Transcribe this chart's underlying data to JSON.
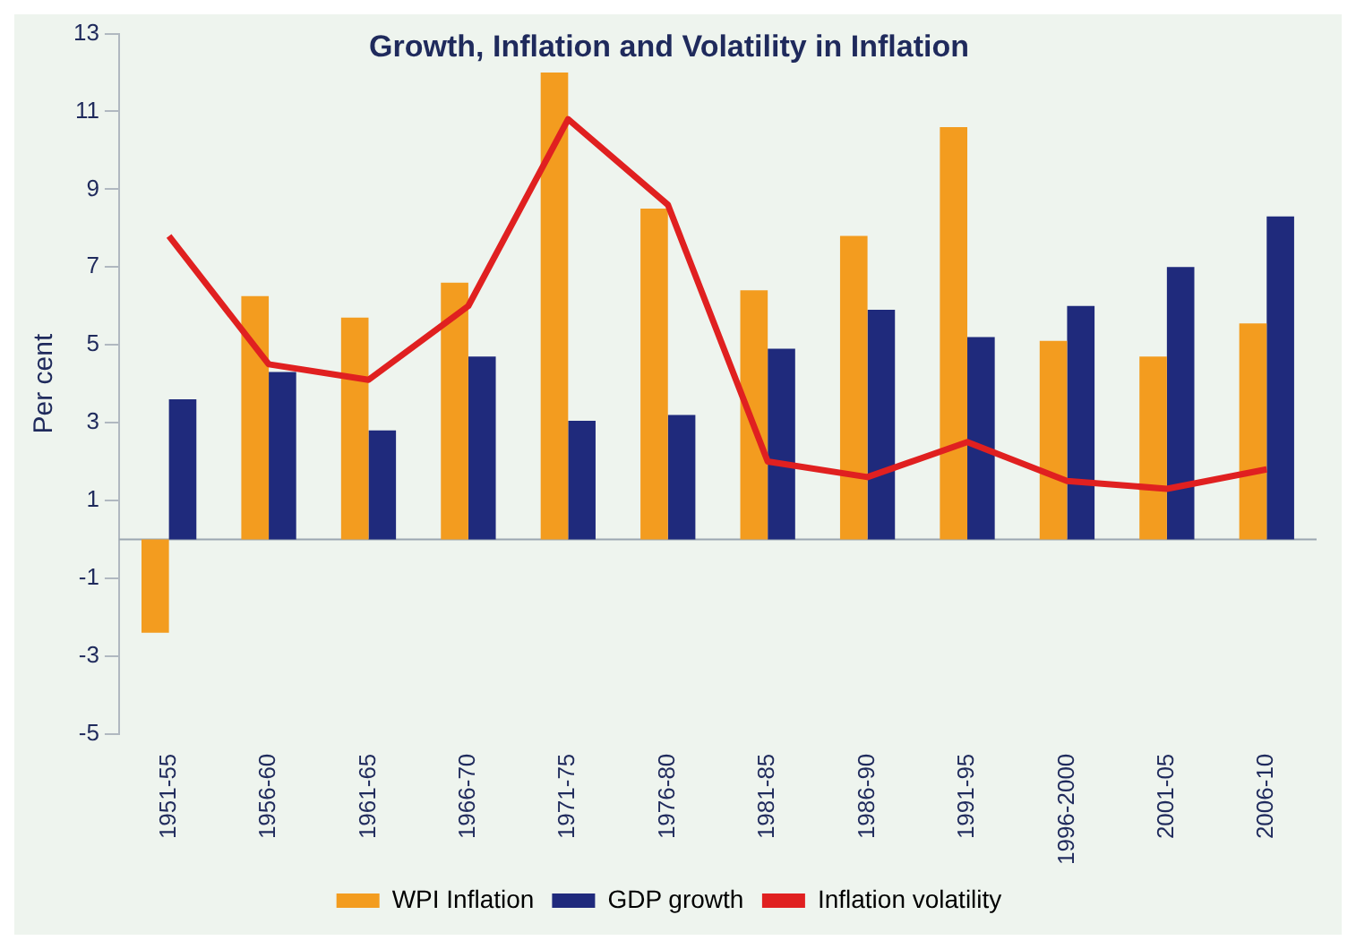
{
  "chart_data": {
    "type": "bar",
    "title": "Growth, Inflation and Volatility in Inflation",
    "ylabel": "Per cent",
    "categories": [
      "1951-55",
      "1956-60",
      "1961-65",
      "1966-70",
      "1971-75",
      "1976-80",
      "1981-85",
      "1986-90",
      "1991-95",
      "1996-2000",
      "2001-05",
      "2006-10"
    ],
    "series": [
      {
        "name": "WPI Inflation",
        "color": "#f39c1f",
        "values": [
          -2.4,
          6.25,
          5.7,
          6.6,
          12.0,
          8.5,
          6.4,
          7.8,
          10.6,
          5.1,
          4.7,
          5.55
        ]
      },
      {
        "name": "GDP growth",
        "color": "#1f2a7c",
        "values": [
          3.6,
          4.3,
          2.8,
          4.7,
          3.05,
          3.2,
          4.9,
          5.9,
          5.2,
          6.0,
          7.0,
          8.3
        ]
      },
      {
        "name": "Inflation volatility",
        "type": "line",
        "color": "#e02020",
        "values": [
          7.8,
          4.5,
          4.1,
          6.0,
          10.8,
          8.6,
          2.0,
          1.6,
          2.5,
          1.5,
          1.3,
          1.8
        ]
      }
    ],
    "ylim": [
      -5,
      13
    ],
    "yticks": [
      -5,
      -3,
      -1,
      1,
      3,
      5,
      7,
      9,
      11,
      13
    ],
    "grid": false,
    "legend": "bottom",
    "marker": "none"
  }
}
